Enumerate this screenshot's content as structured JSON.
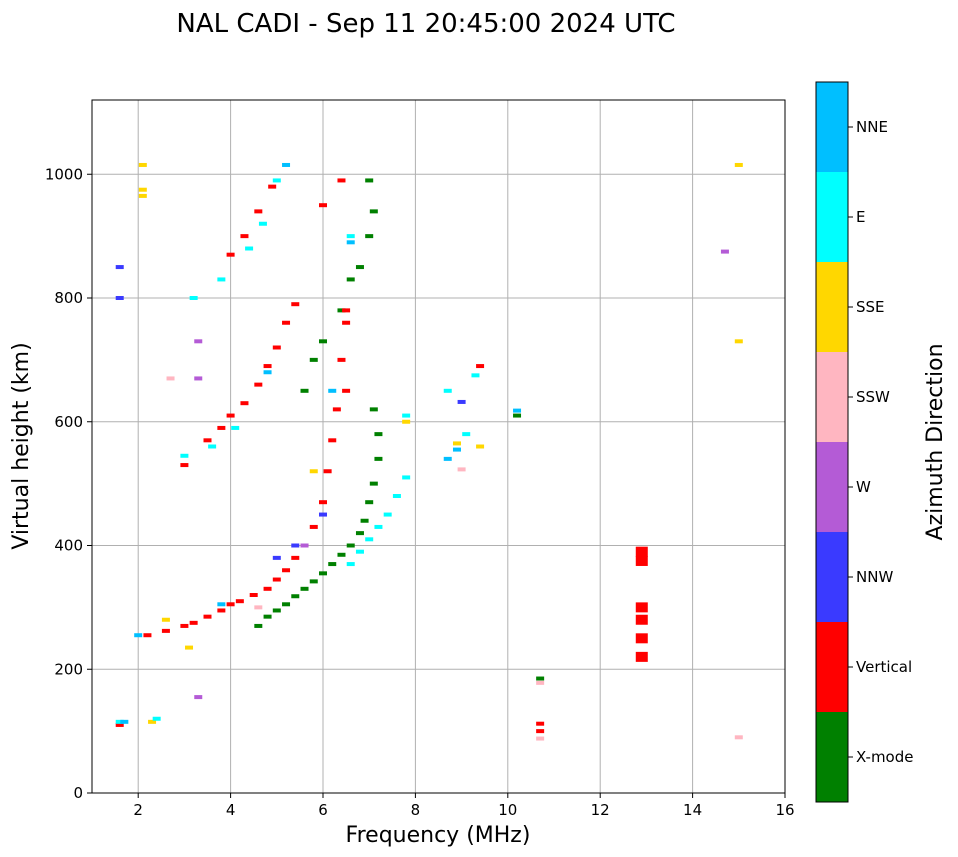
{
  "chart_data": {
    "type": "scatter",
    "title": "NAL CADI - Sep 11 20:45:00 2024 UTC",
    "xlabel": "Frequency (MHz)",
    "ylabel": "Virtual height (km)",
    "xlim": [
      1,
      16
    ],
    "ylim": [
      0,
      1120
    ],
    "xticks": [
      2,
      4,
      6,
      8,
      10,
      12,
      14,
      16
    ],
    "yticks": [
      0,
      200,
      400,
      600,
      800,
      1000
    ],
    "grid": true,
    "colorbar": {
      "label": "Azimuth Direction",
      "categories": [
        "X-mode",
        "Vertical",
        "NNW",
        "W",
        "SSW",
        "SSE",
        "E",
        "NNE"
      ],
      "colors": [
        "#008000",
        "#ff0000",
        "#3a3aff",
        "#b45bd6",
        "#ffb6c1",
        "#ffd700",
        "#00ffff",
        "#00bfff"
      ]
    },
    "series": [
      {
        "name": "X-mode",
        "points": [
          [
            4.6,
            270
          ],
          [
            4.8,
            285
          ],
          [
            5.0,
            295
          ],
          [
            5.2,
            305
          ],
          [
            5.4,
            318
          ],
          [
            5.6,
            330
          ],
          [
            5.8,
            342
          ],
          [
            6.0,
            355
          ],
          [
            6.2,
            370
          ],
          [
            6.4,
            385
          ],
          [
            6.6,
            400
          ],
          [
            6.8,
            420
          ],
          [
            6.9,
            440
          ],
          [
            7.0,
            470
          ],
          [
            7.1,
            500
          ],
          [
            7.2,
            540
          ],
          [
            7.2,
            580
          ],
          [
            7.1,
            620
          ],
          [
            5.6,
            650
          ],
          [
            5.8,
            700
          ],
          [
            6.0,
            730
          ],
          [
            6.4,
            780
          ],
          [
            6.6,
            830
          ],
          [
            6.8,
            850
          ],
          [
            7.0,
            900
          ],
          [
            7.1,
            940
          ],
          [
            7.0,
            990
          ],
          [
            10.7,
            185
          ],
          [
            10.2,
            610
          ]
        ]
      },
      {
        "name": "Vertical",
        "points": [
          [
            1.6,
            110
          ],
          [
            2.2,
            255
          ],
          [
            2.6,
            262
          ],
          [
            3.0,
            270
          ],
          [
            3.2,
            275
          ],
          [
            3.5,
            285
          ],
          [
            3.8,
            295
          ],
          [
            4.0,
            305
          ],
          [
            4.2,
            310
          ],
          [
            4.5,
            320
          ],
          [
            4.8,
            330
          ],
          [
            5.0,
            345
          ],
          [
            5.2,
            360
          ],
          [
            5.4,
            380
          ],
          [
            5.6,
            400
          ],
          [
            5.8,
            430
          ],
          [
            6.0,
            470
          ],
          [
            6.1,
            520
          ],
          [
            6.2,
            570
          ],
          [
            6.3,
            620
          ],
          [
            3.0,
            530
          ],
          [
            3.5,
            570
          ],
          [
            3.8,
            590
          ],
          [
            4.0,
            610
          ],
          [
            4.3,
            630
          ],
          [
            4.6,
            660
          ],
          [
            4.8,
            690
          ],
          [
            5.0,
            720
          ],
          [
            5.2,
            760
          ],
          [
            5.4,
            790
          ],
          [
            4.0,
            870
          ],
          [
            4.3,
            900
          ],
          [
            4.6,
            940
          ],
          [
            4.9,
            980
          ],
          [
            6.5,
            650
          ],
          [
            6.5,
            760
          ],
          [
            6.5,
            780
          ],
          [
            6.4,
            700
          ],
          [
            6.0,
            950
          ],
          [
            6.4,
            990
          ],
          [
            9.4,
            690
          ],
          [
            10.7,
            100
          ],
          [
            10.7,
            112
          ],
          [
            12.9,
            375
          ],
          [
            12.9,
            390
          ],
          [
            12.9,
            220
          ],
          [
            12.9,
            250
          ],
          [
            12.9,
            280
          ],
          [
            12.9,
            300
          ]
        ]
      },
      {
        "name": "NNW",
        "points": [
          [
            1.6,
            850
          ],
          [
            1.6,
            800
          ],
          [
            5.0,
            380
          ],
          [
            5.4,
            400
          ],
          [
            6.0,
            450
          ],
          [
            9.0,
            632
          ]
        ]
      },
      {
        "name": "W",
        "points": [
          [
            3.3,
            155
          ],
          [
            3.3,
            670
          ],
          [
            3.3,
            730
          ],
          [
            5.6,
            400
          ],
          [
            14.7,
            875
          ]
        ]
      },
      {
        "name": "SSW",
        "points": [
          [
            2.7,
            670
          ],
          [
            4.6,
            300
          ],
          [
            9.0,
            523
          ],
          [
            10.7,
            88
          ],
          [
            10.7,
            178
          ],
          [
            15.0,
            90
          ]
        ]
      },
      {
        "name": "SSE",
        "points": [
          [
            2.1,
            1015
          ],
          [
            2.1,
            975
          ],
          [
            2.1,
            965
          ],
          [
            2.3,
            115
          ],
          [
            2.6,
            280
          ],
          [
            3.1,
            235
          ],
          [
            5.8,
            520
          ],
          [
            7.8,
            600
          ],
          [
            8.9,
            565
          ],
          [
            9.4,
            560
          ],
          [
            15.0,
            730
          ],
          [
            15.0,
            1015
          ]
        ]
      },
      {
        "name": "E",
        "points": [
          [
            1.6,
            115
          ],
          [
            2.4,
            120
          ],
          [
            3.0,
            545
          ],
          [
            3.2,
            800
          ],
          [
            3.6,
            560
          ],
          [
            3.8,
            830
          ],
          [
            4.1,
            590
          ],
          [
            4.4,
            880
          ],
          [
            4.7,
            920
          ],
          [
            5.0,
            990
          ],
          [
            6.6,
            370
          ],
          [
            6.8,
            390
          ],
          [
            7.0,
            410
          ],
          [
            7.2,
            430
          ],
          [
            7.4,
            450
          ],
          [
            7.6,
            480
          ],
          [
            7.8,
            510
          ],
          [
            7.8,
            610
          ],
          [
            8.7,
            650
          ],
          [
            9.1,
            580
          ],
          [
            9.3,
            675
          ],
          [
            6.6,
            900
          ]
        ]
      },
      {
        "name": "NNE",
        "points": [
          [
            1.7,
            115
          ],
          [
            2.0,
            255
          ],
          [
            3.8,
            305
          ],
          [
            4.8,
            680
          ],
          [
            5.2,
            1015
          ],
          [
            6.2,
            650
          ],
          [
            6.6,
            890
          ],
          [
            8.7,
            540
          ],
          [
            8.9,
            555
          ],
          [
            10.2,
            618
          ]
        ]
      }
    ]
  }
}
